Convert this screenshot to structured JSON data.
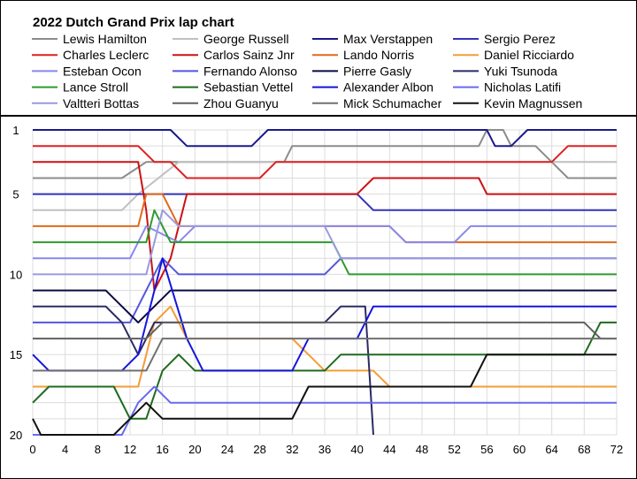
{
  "chart_data": {
    "type": "line",
    "title": "2022 Dutch Grand Prix lap chart",
    "xlabel": "",
    "ylabel": "",
    "xlim": [
      0,
      72
    ],
    "ylim": [
      1,
      20
    ],
    "y_reversed": true,
    "grid": true,
    "legend_position": "top",
    "x_ticks": [
      "0",
      "4",
      "8",
      "12",
      "16",
      "20",
      "24",
      "28",
      "32",
      "36",
      "40",
      "44",
      "48",
      "52",
      "56",
      "60",
      "64",
      "68",
      "72"
    ],
    "y_ticks": [
      "1",
      "5",
      "10",
      "15",
      "20"
    ],
    "series": [
      {
        "name": "Lewis Hamilton",
        "color": "#8c8c8c",
        "points": [
          [
            0,
            4
          ],
          [
            11,
            4
          ],
          [
            14,
            3
          ],
          [
            31,
            3
          ],
          [
            32,
            2
          ],
          [
            55,
            2
          ],
          [
            56,
            1
          ],
          [
            58,
            1
          ],
          [
            59,
            2
          ],
          [
            62,
            2
          ],
          [
            64,
            3
          ],
          [
            66,
            4
          ],
          [
            72,
            4
          ]
        ]
      },
      {
        "name": "George Russell",
        "color": "#c0c0c0",
        "points": [
          [
            0,
            6
          ],
          [
            11,
            6
          ],
          [
            13,
            5
          ],
          [
            18,
            3
          ],
          [
            31,
            3
          ],
          [
            32,
            3
          ],
          [
            55,
            3
          ],
          [
            56,
            3
          ],
          [
            72,
            3
          ]
        ]
      },
      {
        "name": "Max Verstappen",
        "color": "#1a1a8c",
        "points": [
          [
            0,
            1
          ],
          [
            17,
            1
          ],
          [
            19,
            2
          ],
          [
            27,
            2
          ],
          [
            29,
            1
          ],
          [
            56,
            1
          ],
          [
            57,
            2
          ],
          [
            59,
            2
          ],
          [
            61,
            1
          ],
          [
            72,
            1
          ]
        ]
      },
      {
        "name": "Sergio Perez",
        "color": "#3333bb",
        "points": [
          [
            0,
            5
          ],
          [
            17,
            5
          ],
          [
            19,
            5
          ],
          [
            40,
            5
          ],
          [
            42,
            6
          ],
          [
            44,
            6
          ],
          [
            46,
            6
          ],
          [
            72,
            6
          ]
        ]
      },
      {
        "name": "Charles Leclerc",
        "color": "#dd2020",
        "points": [
          [
            0,
            2
          ],
          [
            13,
            2
          ],
          [
            15,
            3
          ],
          [
            17,
            3
          ],
          [
            19,
            4
          ],
          [
            28,
            4
          ],
          [
            30,
            3
          ],
          [
            45,
            3
          ],
          [
            48,
            3
          ],
          [
            64,
            3
          ],
          [
            66,
            2
          ],
          [
            72,
            2
          ]
        ]
      },
      {
        "name": "Carlos Sainz Jnr",
        "color": "#cc1111",
        "points": [
          [
            0,
            3
          ],
          [
            13,
            3
          ],
          [
            14,
            6
          ],
          [
            15,
            11
          ],
          [
            17,
            9
          ],
          [
            19,
            5
          ],
          [
            40,
            5
          ],
          [
            42,
            4
          ],
          [
            55,
            4
          ],
          [
            56,
            5
          ],
          [
            72,
            5
          ]
        ]
      },
      {
        "name": "Lando Norris",
        "color": "#e06a1a",
        "points": [
          [
            0,
            7
          ],
          [
            13,
            7
          ],
          [
            14,
            5
          ],
          [
            16,
            5
          ],
          [
            18,
            7
          ],
          [
            40,
            7
          ],
          [
            42,
            7
          ],
          [
            44,
            7
          ],
          [
            46,
            8
          ],
          [
            72,
            8
          ]
        ]
      },
      {
        "name": "Daniel Ricciardo",
        "color": "#f29d36",
        "points": [
          [
            0,
            17
          ],
          [
            13,
            17
          ],
          [
            15,
            13
          ],
          [
            17,
            12
          ],
          [
            19,
            14
          ],
          [
            32,
            14
          ],
          [
            34,
            15
          ],
          [
            36,
            16
          ],
          [
            42,
            16
          ],
          [
            44,
            17
          ],
          [
            72,
            17
          ]
        ]
      },
      {
        "name": "Esteban Ocon",
        "color": "#8888ee",
        "points": [
          [
            0,
            9
          ],
          [
            12,
            9
          ],
          [
            14,
            7
          ],
          [
            18,
            8
          ],
          [
            20,
            7
          ],
          [
            44,
            7
          ],
          [
            46,
            8
          ],
          [
            52,
            8
          ],
          [
            54,
            7
          ],
          [
            72,
            7
          ]
        ]
      },
      {
        "name": "Fernando Alonso",
        "color": "#5555dd",
        "points": [
          [
            0,
            13
          ],
          [
            12,
            13
          ],
          [
            14,
            11
          ],
          [
            16,
            9
          ],
          [
            18,
            10
          ],
          [
            36,
            10
          ],
          [
            38,
            9
          ],
          [
            46,
            9
          ],
          [
            52,
            9
          ],
          [
            54,
            9
          ],
          [
            72,
            9
          ]
        ]
      },
      {
        "name": "Pierre Gasly",
        "color": "#0a0a40",
        "points": [
          [
            0,
            11
          ],
          [
            9,
            11
          ],
          [
            11,
            12
          ],
          [
            13,
            13
          ],
          [
            15,
            12
          ],
          [
            17,
            11
          ],
          [
            20,
            11
          ],
          [
            40,
            11
          ],
          [
            42,
            11
          ],
          [
            72,
            11
          ]
        ]
      },
      {
        "name": "Yuki Tsunoda",
        "color": "#2b2b66",
        "points": [
          [
            0,
            12
          ],
          [
            9,
            12
          ],
          [
            11,
            13
          ],
          [
            13,
            15
          ],
          [
            15,
            13
          ],
          [
            19,
            13
          ],
          [
            36,
            13
          ],
          [
            38,
            12
          ],
          [
            41,
            12
          ],
          [
            42,
            20
          ]
        ]
      },
      {
        "name": "Lance Stroll",
        "color": "#2e9b2e",
        "points": [
          [
            0,
            8
          ],
          [
            14,
            8
          ],
          [
            15,
            6
          ],
          [
            17,
            8
          ],
          [
            19,
            8
          ],
          [
            37,
            8
          ],
          [
            39,
            10
          ],
          [
            72,
            10
          ]
        ]
      },
      {
        "name": "Sebastian Vettel",
        "color": "#1f6a1f",
        "points": [
          [
            0,
            18
          ],
          [
            2,
            17
          ],
          [
            10,
            17
          ],
          [
            12,
            19
          ],
          [
            14,
            19
          ],
          [
            16,
            16
          ],
          [
            18,
            15
          ],
          [
            20,
            16
          ],
          [
            36,
            16
          ],
          [
            38,
            15
          ],
          [
            44,
            15
          ],
          [
            54,
            15
          ],
          [
            56,
            15
          ],
          [
            68,
            15
          ],
          [
            70,
            13
          ],
          [
            72,
            13
          ]
        ]
      },
      {
        "name": "Alexander Albon",
        "color": "#1515dd",
        "points": [
          [
            0,
            15
          ],
          [
            2,
            16
          ],
          [
            11,
            16
          ],
          [
            13,
            15
          ],
          [
            16,
            9
          ],
          [
            19,
            14
          ],
          [
            21,
            16
          ],
          [
            32,
            16
          ],
          [
            34,
            14
          ],
          [
            40,
            14
          ],
          [
            42,
            12
          ],
          [
            48,
            12
          ],
          [
            54,
            12
          ],
          [
            56,
            12
          ],
          [
            72,
            12
          ]
        ]
      },
      {
        "name": "Nicholas Latifi",
        "color": "#6a6aee",
        "points": [
          [
            0,
            20
          ],
          [
            11,
            20
          ],
          [
            13,
            18
          ],
          [
            15,
            17
          ],
          [
            17,
            18
          ],
          [
            52,
            18
          ],
          [
            54,
            18
          ],
          [
            72,
            18
          ]
        ]
      },
      {
        "name": "Valtteri Bottas",
        "color": "#9a9ae0",
        "points": [
          [
            0,
            10
          ],
          [
            12,
            10
          ],
          [
            14,
            10
          ],
          [
            16,
            6
          ],
          [
            18,
            7
          ],
          [
            28,
            7
          ],
          [
            30,
            7
          ],
          [
            36,
            7
          ],
          [
            38,
            9
          ],
          [
            44,
            9
          ],
          [
            46,
            9
          ],
          [
            54,
            9
          ],
          [
            56,
            9
          ],
          [
            72,
            9
          ]
        ]
      },
      {
        "name": "Zhou Guanyu",
        "color": "#606060",
        "points": [
          [
            0,
            14
          ],
          [
            12,
            14
          ],
          [
            14,
            14
          ],
          [
            16,
            13
          ],
          [
            18,
            13
          ],
          [
            36,
            13
          ],
          [
            38,
            13
          ],
          [
            50,
            13
          ],
          [
            54,
            13
          ],
          [
            56,
            13
          ],
          [
            60,
            13
          ],
          [
            68,
            13
          ],
          [
            70,
            14
          ],
          [
            72,
            14
          ]
        ]
      },
      {
        "name": "Mick Schumacher",
        "color": "#707070",
        "points": [
          [
            0,
            16
          ],
          [
            12,
            16
          ],
          [
            14,
            16
          ],
          [
            16,
            14
          ],
          [
            18,
            14
          ],
          [
            34,
            14
          ],
          [
            36,
            14
          ],
          [
            38,
            14
          ],
          [
            48,
            14
          ],
          [
            54,
            14
          ],
          [
            56,
            14
          ],
          [
            72,
            14
          ]
        ]
      },
      {
        "name": "Kevin Magnussen",
        "color": "#111111",
        "points": [
          [
            0,
            19
          ],
          [
            1,
            20
          ],
          [
            10,
            20
          ],
          [
            12,
            19
          ],
          [
            14,
            18
          ],
          [
            16,
            19
          ],
          [
            30,
            19
          ],
          [
            32,
            19
          ],
          [
            34,
            17
          ],
          [
            36,
            17
          ],
          [
            54,
            17
          ],
          [
            56,
            15
          ],
          [
            72,
            15
          ]
        ]
      }
    ]
  }
}
